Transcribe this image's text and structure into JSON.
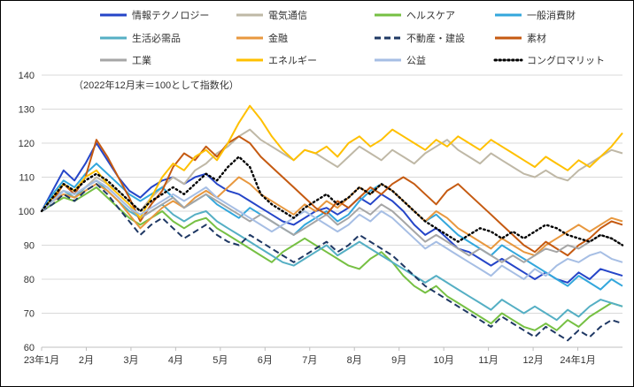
{
  "chart_data": {
    "type": "line",
    "title": "",
    "subtitle": "（2022年12月末＝100として指数化）",
    "xlabel": "",
    "ylabel": "",
    "ylim": [
      60,
      140
    ],
    "y_ticks": [
      60,
      70,
      80,
      90,
      100,
      110,
      120,
      130,
      140
    ],
    "x_ticks": [
      "23年1月",
      "2月",
      "3月",
      "4月",
      "5月",
      "6月",
      "7月",
      "8月",
      "9月",
      "10月",
      "11月",
      "12月",
      "24年1月"
    ],
    "grid": true,
    "legend_position": "top",
    "colors": {
      "grid": "#d9d9d9",
      "axis": "#bfbfbf",
      "tick_label": "#333333",
      "subtitle": "#333333"
    },
    "series": [
      {
        "name": "情報テクノロジー",
        "color": "#2545C8",
        "dash": "solid",
        "values": [
          100,
          106,
          112,
          109,
          114,
          120,
          115,
          110,
          106,
          104,
          107,
          109,
          110,
          108,
          110,
          111,
          108,
          106,
          105,
          103,
          101,
          99,
          97,
          96,
          98,
          100,
          101,
          99,
          101,
          104,
          102,
          105,
          103,
          100,
          96,
          93,
          95,
          92,
          89,
          88,
          86,
          84,
          86,
          84,
          82,
          80,
          82,
          80,
          79,
          82,
          80,
          83,
          82,
          81
        ]
      },
      {
        "name": "電気通信",
        "color": "#BFB8A6",
        "dash": "solid",
        "values": [
          100,
          104,
          106,
          104,
          107,
          110,
          108,
          106,
          103,
          100,
          104,
          107,
          110,
          108,
          112,
          114,
          117,
          119,
          122,
          124,
          121,
          119,
          117,
          115,
          118,
          117,
          115,
          113,
          116,
          119,
          117,
          115,
          118,
          116,
          114,
          117,
          119,
          121,
          118,
          116,
          114,
          117,
          115,
          113,
          111,
          110,
          112,
          110,
          109,
          112,
          114,
          116,
          118,
          117
        ]
      },
      {
        "name": "ヘルスケア",
        "color": "#76C043",
        "dash": "solid",
        "values": [
          100,
          102,
          104,
          103,
          105,
          107,
          104,
          101,
          98,
          96,
          98,
          100,
          97,
          95,
          97,
          98,
          95,
          93,
          91,
          89,
          87,
          85,
          88,
          90,
          92,
          90,
          88,
          86,
          84,
          83,
          86,
          88,
          85,
          81,
          78,
          76,
          78,
          75,
          73,
          71,
          69,
          67,
          70,
          68,
          66,
          65,
          67,
          65,
          68,
          66,
          69,
          71,
          73,
          72
        ]
      },
      {
        "name": "一般消費財",
        "color": "#33A7DC",
        "dash": "solid",
        "values": [
          100,
          105,
          109,
          107,
          111,
          114,
          111,
          108,
          105,
          103,
          105,
          107,
          104,
          101,
          103,
          105,
          102,
          100,
          98,
          101,
          99,
          97,
          95,
          93,
          96,
          98,
          100,
          97,
          99,
          103,
          106,
          108,
          106,
          103,
          100,
          97,
          99,
          96,
          93,
          91,
          89,
          87,
          90,
          88,
          86,
          84,
          82,
          80,
          78,
          81,
          79,
          77,
          80,
          78
        ]
      },
      {
        "name": "生活必需品",
        "color": "#55AFC4",
        "dash": "solid",
        "values": [
          100,
          103,
          106,
          104,
          107,
          109,
          106,
          103,
          100,
          98,
          100,
          102,
          99,
          97,
          99,
          100,
          97,
          95,
          93,
          91,
          89,
          87,
          85,
          84,
          86,
          88,
          90,
          87,
          89,
          91,
          89,
          87,
          85,
          83,
          81,
          79,
          81,
          79,
          77,
          75,
          73,
          71,
          74,
          72,
          70,
          72,
          70,
          68,
          71,
          69,
          72,
          74,
          73,
          72
        ]
      },
      {
        "name": "金融",
        "color": "#E8983F",
        "dash": "solid",
        "values": [
          100,
          103,
          105,
          104,
          106,
          108,
          106,
          103,
          99,
          95,
          98,
          101,
          103,
          101,
          104,
          106,
          104,
          107,
          110,
          108,
          105,
          103,
          101,
          99,
          102,
          100,
          103,
          101,
          104,
          107,
          105,
          108,
          106,
          103,
          100,
          97,
          100,
          98,
          95,
          93,
          91,
          89,
          92,
          90,
          88,
          87,
          90,
          92,
          94,
          96,
          94,
          96,
          98,
          97
        ]
      },
      {
        "name": "不動産・建設",
        "color": "#1F3864",
        "dash": "dashed",
        "values": [
          100,
          102,
          105,
          103,
          106,
          108,
          105,
          101,
          97,
          93,
          96,
          98,
          95,
          92,
          94,
          96,
          93,
          91,
          90,
          93,
          91,
          89,
          87,
          85,
          87,
          89,
          91,
          88,
          90,
          93,
          91,
          89,
          87,
          84,
          81,
          78,
          76,
          74,
          72,
          70,
          68,
          66,
          69,
          67,
          65,
          63,
          66,
          64,
          62,
          65,
          63,
          66,
          68,
          67
        ]
      },
      {
        "name": "素材",
        "color": "#C55A11",
        "dash": "solid",
        "values": [
          100,
          103,
          108,
          105,
          110,
          121,
          116,
          110,
          104,
          97,
          102,
          106,
          113,
          117,
          115,
          119,
          116,
          120,
          122,
          120,
          116,
          113,
          110,
          107,
          104,
          101,
          99,
          103,
          101,
          104,
          107,
          105,
          108,
          110,
          108,
          105,
          102,
          106,
          108,
          105,
          102,
          99,
          96,
          93,
          90,
          88,
          91,
          89,
          87,
          90,
          92,
          95,
          97,
          96
        ]
      },
      {
        "name": "工業",
        "color": "#A6A6A6",
        "dash": "solid",
        "values": [
          100,
          103,
          106,
          105,
          107,
          109,
          107,
          104,
          101,
          98,
          100,
          102,
          104,
          101,
          103,
          105,
          103,
          101,
          99,
          97,
          99,
          97,
          95,
          93,
          95,
          97,
          99,
          96,
          98,
          101,
          99,
          102,
          100,
          97,
          94,
          91,
          93,
          91,
          89,
          87,
          89,
          87,
          85,
          87,
          85,
          87,
          89,
          88,
          90,
          89,
          91,
          93,
          92,
          90
        ]
      },
      {
        "name": "エネルギー",
        "color": "#FFC000",
        "dash": "solid",
        "values": [
          100,
          104,
          108,
          106,
          110,
          112,
          108,
          105,
          102,
          98,
          104,
          110,
          114,
          112,
          116,
          118,
          115,
          120,
          126,
          131,
          127,
          122,
          118,
          115,
          118,
          117,
          119,
          116,
          120,
          122,
          119,
          121,
          124,
          122,
          120,
          118,
          121,
          119,
          122,
          120,
          118,
          121,
          119,
          117,
          115,
          113,
          116,
          114,
          112,
          115,
          113,
          116,
          119,
          123
        ]
      },
      {
        "name": "公益",
        "color": "#A6BEE4",
        "dash": "solid",
        "values": [
          100,
          103,
          106,
          105,
          107,
          109,
          107,
          104,
          101,
          99,
          101,
          103,
          105,
          103,
          105,
          107,
          104,
          102,
          100,
          98,
          96,
          94,
          96,
          98,
          100,
          98,
          96,
          94,
          96,
          99,
          97,
          100,
          98,
          95,
          92,
          89,
          91,
          89,
          87,
          85,
          83,
          81,
          84,
          82,
          80,
          83,
          81,
          84,
          86,
          85,
          87,
          88,
          86,
          85
        ]
      },
      {
        "name": "コングロマリット",
        "color": "#000000",
        "dash": "dotted",
        "values": [
          100,
          104,
          108,
          106,
          109,
          111,
          109,
          106,
          103,
          100,
          103,
          105,
          107,
          105,
          108,
          111,
          109,
          113,
          116,
          113,
          105,
          102,
          100,
          98,
          101,
          103,
          105,
          102,
          104,
          107,
          105,
          108,
          106,
          103,
          100,
          97,
          95,
          93,
          91,
          93,
          95,
          94,
          92,
          94,
          92,
          94,
          96,
          95,
          93,
          92,
          91,
          93,
          92,
          90
        ]
      }
    ]
  }
}
